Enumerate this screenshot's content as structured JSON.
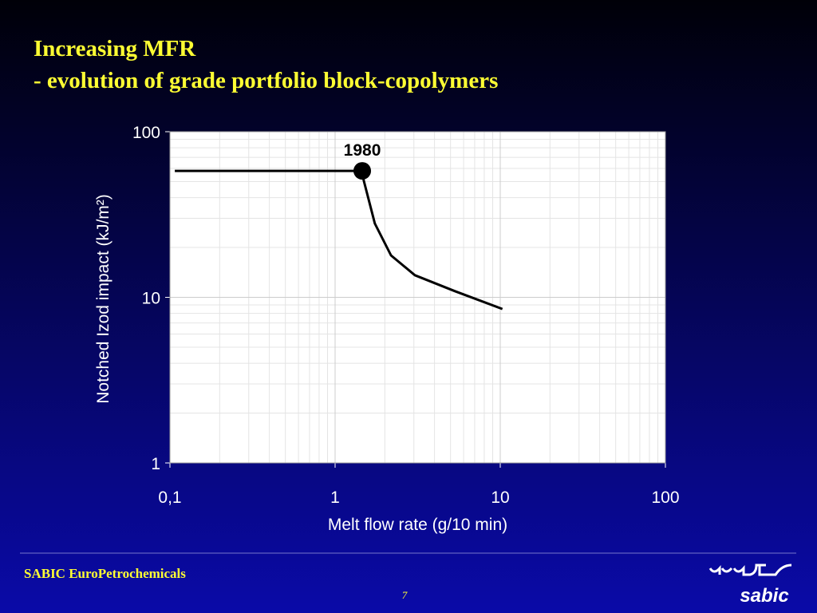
{
  "header": {
    "title": "Increasing MFR",
    "subtitle": "- evolution of grade portfolio block-copolymers"
  },
  "chart_data": {
    "type": "line",
    "x_label": "Melt flow rate (g/10 min)",
    "y_label": "Notched Izod impact (kJ/m²)",
    "xlog": true,
    "ylog": true,
    "grid": true,
    "minor_grid": true,
    "xlim": [
      0.1,
      100
    ],
    "ylim": [
      1,
      100
    ],
    "xticks": [
      {
        "value": 0.1,
        "label": "0,1"
      },
      1,
      10,
      100
    ],
    "yticks": [
      1,
      10,
      100
    ],
    "series": [
      {
        "name": null,
        "color": "#000000",
        "x": [
          0.107,
          1.46,
          1.49,
          1.74,
          2.18,
          3.04,
          5.3,
          10.3
        ],
        "values": [
          58,
          58,
          51,
          27.9,
          17.9,
          13.6,
          10.9,
          8.5
        ]
      }
    ],
    "annotations": [
      {
        "text": "1980",
        "x": 1.46,
        "y": 58
      }
    ]
  },
  "footer": {
    "company": "SABIC EuroPetrochemicals",
    "page": "7",
    "logo": "sabic"
  }
}
